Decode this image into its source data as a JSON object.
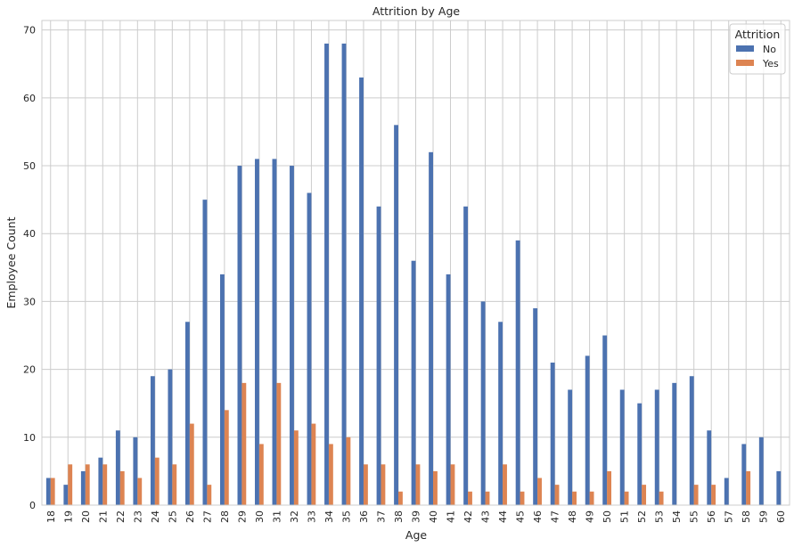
{
  "chart_data": {
    "type": "bar",
    "title": "Attrition by Age",
    "xlabel": "Age",
    "ylabel": "Employee Count",
    "categories": [
      "18",
      "19",
      "20",
      "21",
      "22",
      "23",
      "24",
      "25",
      "26",
      "27",
      "28",
      "29",
      "30",
      "31",
      "32",
      "33",
      "34",
      "35",
      "36",
      "37",
      "38",
      "39",
      "40",
      "41",
      "42",
      "43",
      "44",
      "45",
      "46",
      "47",
      "48",
      "49",
      "50",
      "51",
      "52",
      "53",
      "54",
      "55",
      "56",
      "57",
      "58",
      "59",
      "60"
    ],
    "series": [
      {
        "name": "No",
        "color": "#4c72b0",
        "values": [
          4,
          3,
          5,
          7,
          11,
          10,
          19,
          20,
          27,
          45,
          34,
          50,
          51,
          51,
          50,
          46,
          68,
          68,
          63,
          44,
          56,
          36,
          52,
          34,
          44,
          30,
          27,
          39,
          29,
          21,
          17,
          22,
          25,
          17,
          15,
          17,
          18,
          19,
          11,
          4,
          9,
          10,
          5
        ]
      },
      {
        "name": "Yes",
        "color": "#dd8452",
        "values": [
          4,
          6,
          6,
          6,
          5,
          4,
          7,
          6,
          12,
          3,
          14,
          18,
          9,
          18,
          11,
          12,
          9,
          10,
          6,
          6,
          2,
          6,
          5,
          6,
          2,
          2,
          6,
          2,
          4,
          3,
          2,
          2,
          5,
          2,
          3,
          2,
          0,
          3,
          3,
          0,
          5,
          0,
          0
        ]
      }
    ],
    "ylim": [
      0,
      71.4
    ],
    "yticks": [
      0,
      10,
      20,
      30,
      40,
      50,
      60,
      70
    ],
    "grid": true,
    "legend": {
      "title": "Attrition",
      "placement": "top-right"
    }
  }
}
